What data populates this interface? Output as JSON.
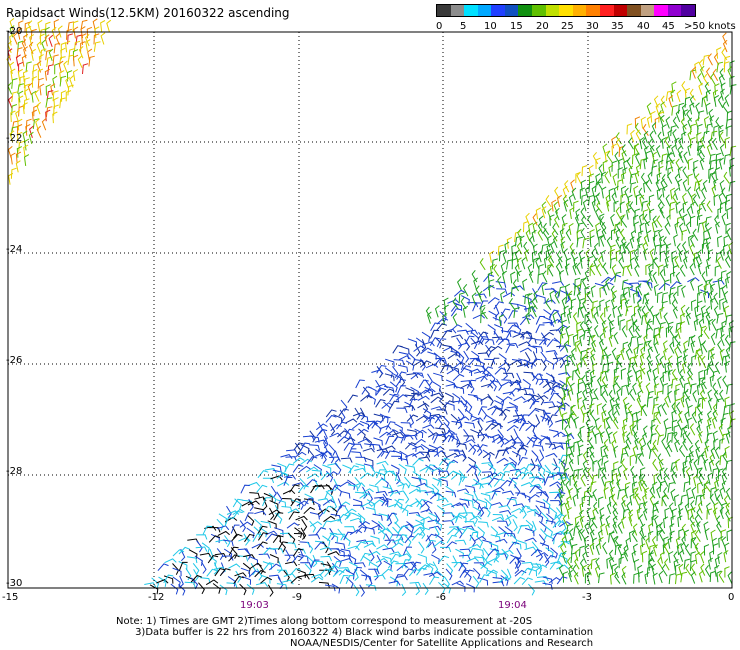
{
  "title": "Rapidsact Winds(12.5KM) 20160322 ascending",
  "colorbar": {
    "colors": [
      "#3a3a3a",
      "#8c8c8c",
      "#00e0ff",
      "#00a8ff",
      "#2040ff",
      "#1050c0",
      "#109010",
      "#60c000",
      "#c0e000",
      "#ffe000",
      "#ffb000",
      "#ff8000",
      "#ff2020",
      "#c00000",
      "#805020",
      "#c0a080",
      "#ff00ff",
      "#9000d0",
      "#5000a0"
    ],
    "labels": [
      "0",
      "5",
      "10",
      "15",
      "20",
      "25",
      "30",
      "35",
      "40",
      "45",
      ">50 knots"
    ]
  },
  "latitudes": [
    "-20",
    "-22",
    "-24",
    "-26",
    "-28",
    "-30"
  ],
  "longitudes": [
    "-15",
    "-12",
    "-9",
    "-6",
    "-3",
    "0"
  ],
  "times": [
    "19:03",
    "19:04"
  ],
  "notes": "Note: 1) Times are GMT 2)Times along bottom correspond to measurement at -20S\n      3)Data buffer is 22 hrs from 20160322 4) Black wind barbs indicate possible contamination",
  "footer": "NOAA/NESDIS/Center for Satellite Applications and Research",
  "wind_speed_palette": {
    "black": "#000000",
    "cyan": "#20c8e8",
    "blue": "#1840d0",
    "darkblue": "#1030a0",
    "green": "#20a020",
    "lightgreen": "#60c000",
    "yellow": "#e8d000",
    "orange": "#f08000",
    "red": "#e02020",
    "gray": "#a0a0a0"
  }
}
